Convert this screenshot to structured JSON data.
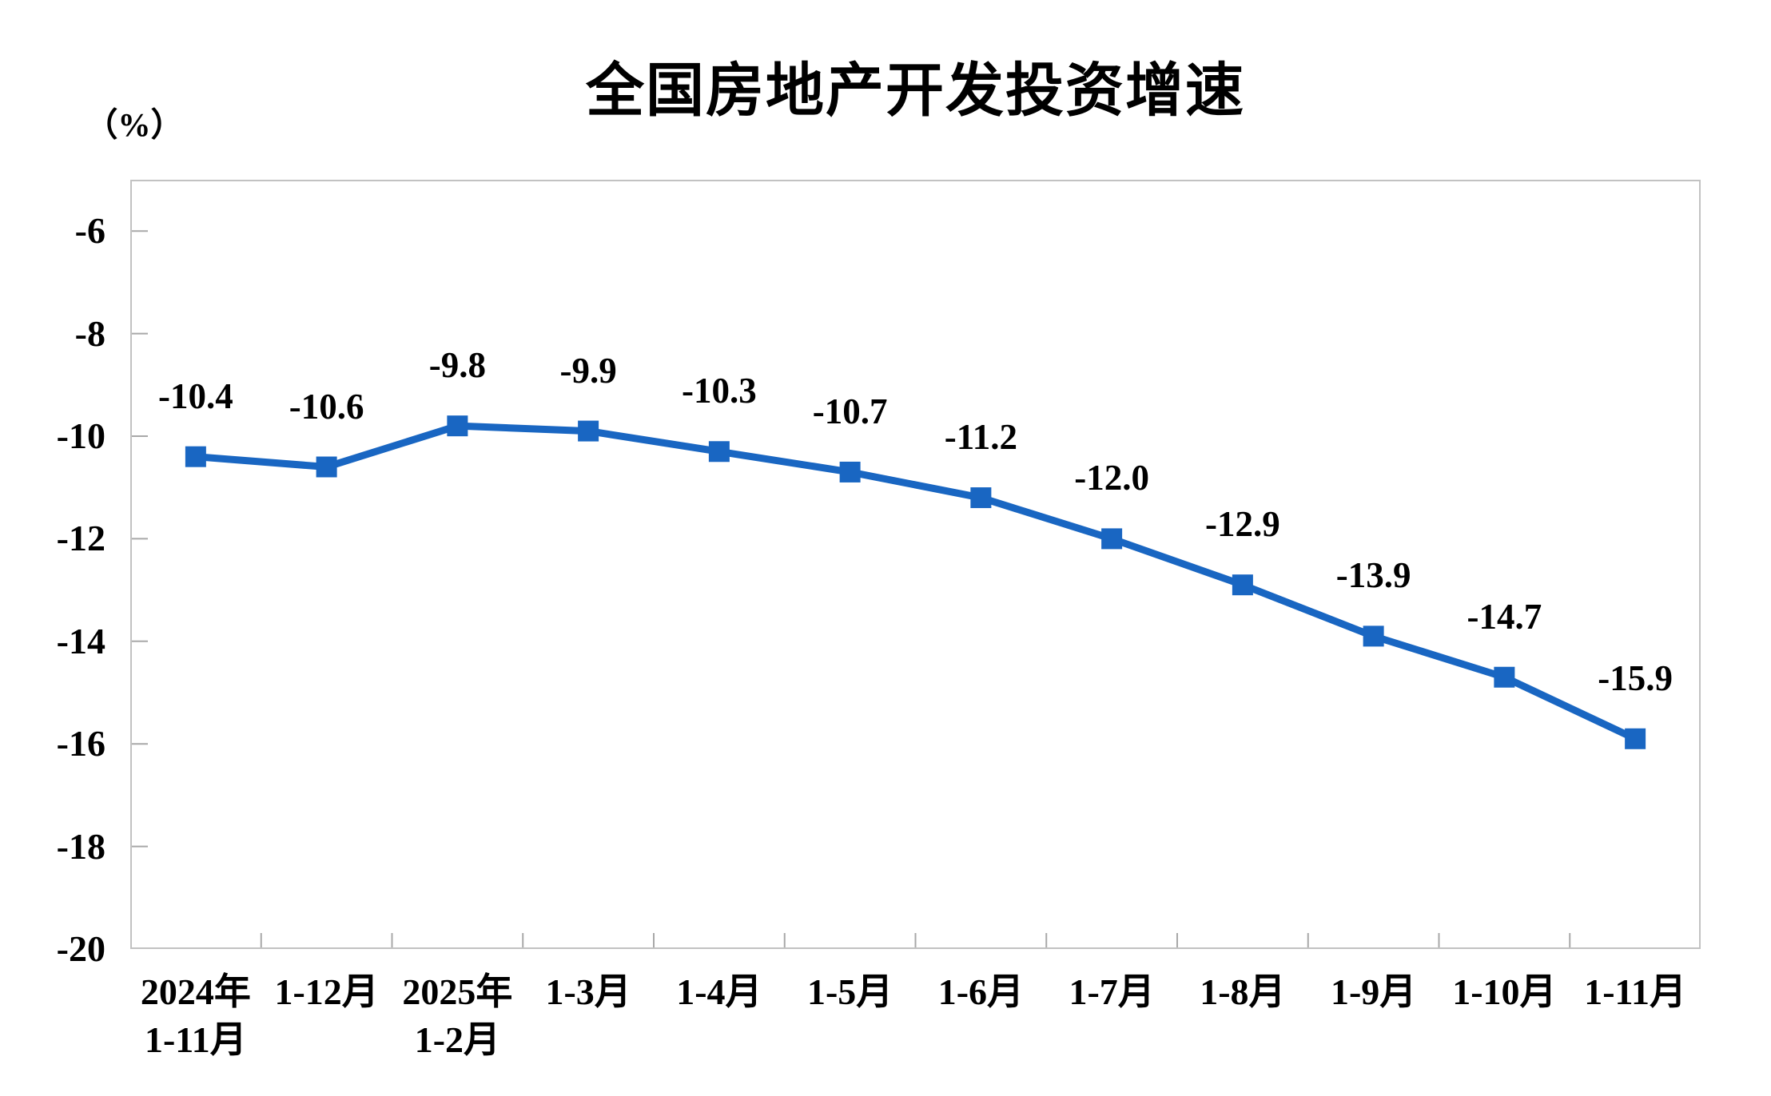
{
  "chart_data": {
    "type": "line",
    "title": "全国房地产开发投资增速",
    "unit_label": "（%）",
    "categories": [
      "2024年\n1-11月",
      "1-12月",
      "2025年\n1-2月",
      "1-3月",
      "1-4月",
      "1-5月",
      "1-6月",
      "1-7月",
      "1-8月",
      "1-9月",
      "1-10月",
      "1-11月"
    ],
    "values": [
      -10.4,
      -10.6,
      -9.8,
      -9.9,
      -10.3,
      -10.7,
      -11.2,
      -12.0,
      -12.9,
      -13.9,
      -14.7,
      -15.9
    ],
    "data_labels": [
      "-10.4",
      "-10.6",
      "-9.8",
      "-9.9",
      "-10.3",
      "-10.7",
      "-11.2",
      "-12.0",
      "-12.9",
      "-13.9",
      "-14.7",
      "-15.9"
    ],
    "y_tick_labels": [
      "-6",
      "-8",
      "-10",
      "-12",
      "-14",
      "-16",
      "-18",
      "-20"
    ],
    "y_ticks": [
      -6,
      -8,
      -10,
      -12,
      -14,
      -16,
      -18,
      -20
    ],
    "ylim": [
      -20,
      -5
    ],
    "grid": false,
    "legend_position": "none",
    "marker": "square",
    "colors": {
      "line": "#1966c2",
      "marker": "#1966c2",
      "axis": "#c2c2c2",
      "tick": "#a8a8a8",
      "text": "#000000"
    }
  }
}
